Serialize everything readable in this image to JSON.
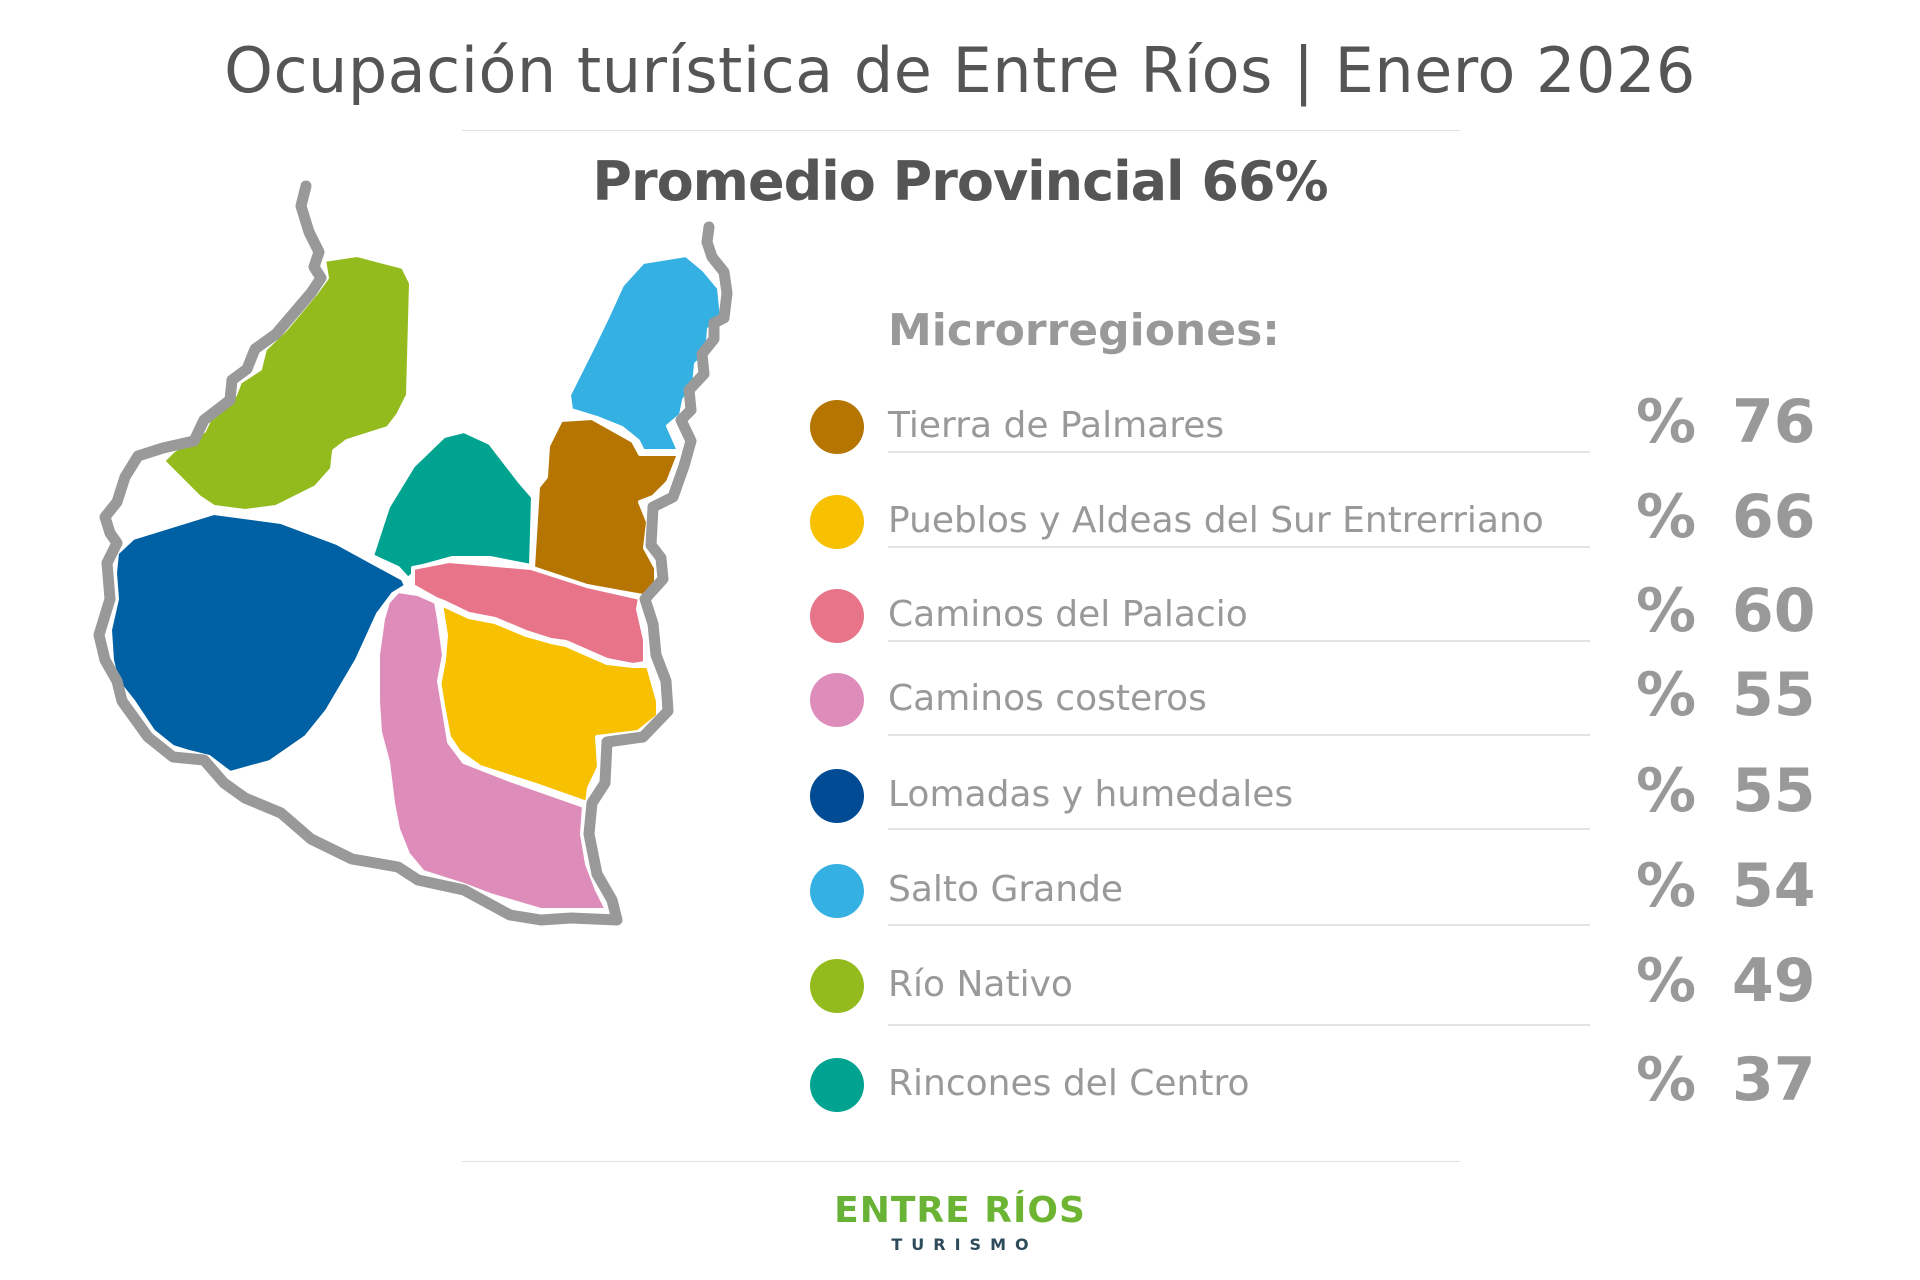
{
  "header": {
    "title": "Ocupación turística de Entre Ríos | Enero 2026",
    "subtitle": "Promedio Provincial 66%"
  },
  "legend": {
    "title": "Microrregiones:",
    "items": [
      {
        "name": "Tierra de Palmares",
        "symbol": "%",
        "value": "76",
        "color": "#b57500"
      },
      {
        "name": "Pueblos y Aldeas del Sur Entrerriano",
        "symbol": "%",
        "value": "66",
        "color": "#f7c000"
      },
      {
        "name": "Caminos del Palacio",
        "symbol": "%",
        "value": "60",
        "color": "#e8748a"
      },
      {
        "name": "Caminos costeros",
        "symbol": "%",
        "value": "55",
        "color": "#de8cba"
      },
      {
        "name": "Lomadas y humedales",
        "symbol": "%",
        "value": "55",
        "color": "#004b93"
      },
      {
        "name": "Salto Grande",
        "symbol": "%",
        "value": "54",
        "color": "#34b0e3"
      },
      {
        "name": "Río Nativo",
        "symbol": "%",
        "value": "49",
        "color": "#94bb1e"
      },
      {
        "name": "Rincones del Centro",
        "symbol": "%",
        "value": "37",
        "color": "#00a38f"
      }
    ]
  },
  "map": {
    "border_color": "#999999",
    "region_colors": {
      "tierra_de_palmares": "#b57500",
      "pueblos_y_aldeas": "#f7c000",
      "caminos_del_palacio": "#e8748a",
      "caminos_costeros": "#de8cba",
      "lomadas_y_humedales": "#0060a4",
      "salto_grande": "#34b0e3",
      "rio_nativo": "#94bb1e",
      "rincones_del_centro": "#00a38f"
    }
  },
  "logo": {
    "main": "ENTRE RÍOS",
    "sub": "TURISMO"
  }
}
